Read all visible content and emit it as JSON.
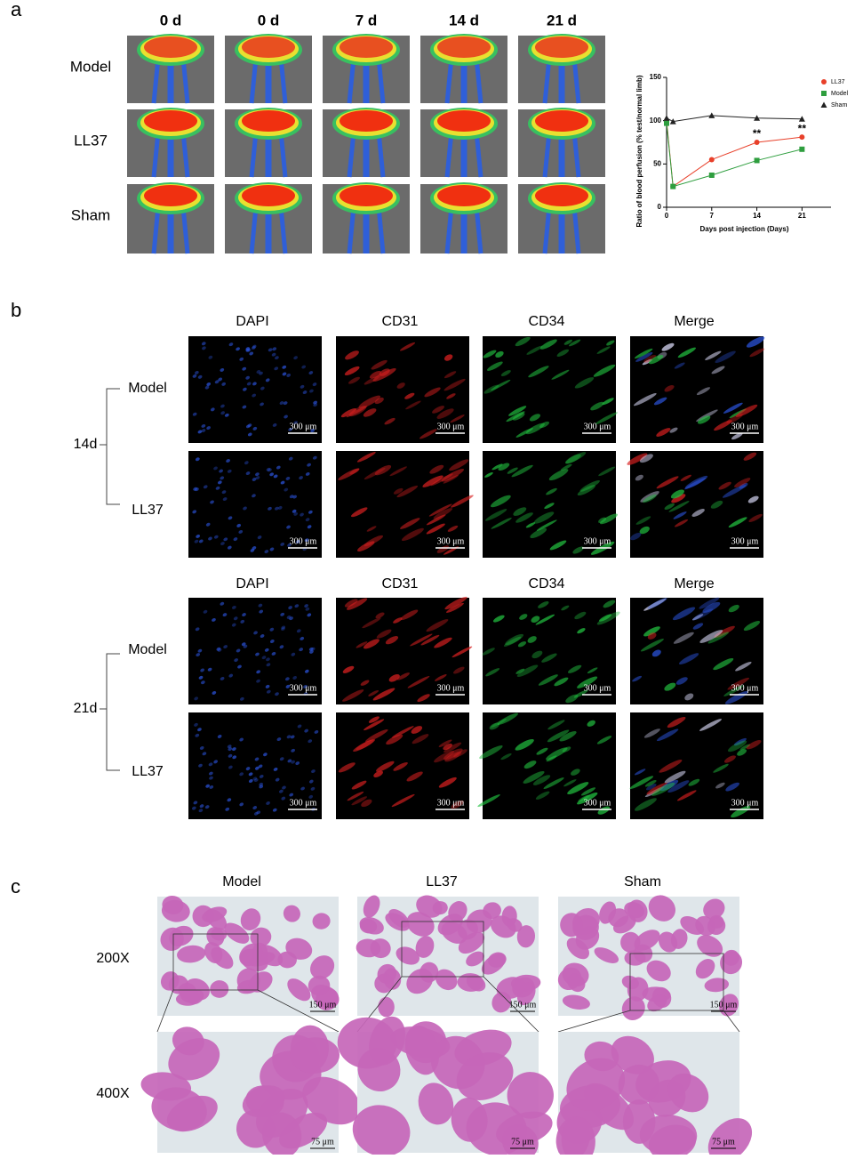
{
  "panel_labels": [
    "a",
    "b",
    "c"
  ],
  "panel_a": {
    "columns": [
      "0 d",
      "0 d",
      "7 d",
      "14 d",
      "21 d"
    ],
    "rows": [
      "Model",
      "LL37",
      "Sham"
    ]
  },
  "chart_data": {
    "type": "line",
    "y_label": "Ratio of blood perfusion (% test/normal limb)",
    "x_label": "Days post injection (Days)",
    "x": [
      0,
      1,
      7,
      14,
      21
    ],
    "series": [
      {
        "name": "LL37",
        "color": "#e8402a",
        "marker": "circle",
        "values": [
          100,
          24,
          55,
          75,
          81
        ]
      },
      {
        "name": "Model",
        "color": "#2e9e3e",
        "marker": "square",
        "values": [
          97,
          24,
          37,
          54,
          67
        ]
      },
      {
        "name": "Sham",
        "color": "#222222",
        "marker": "triangle",
        "values": [
          103,
          99,
          106,
          103,
          102
        ]
      }
    ],
    "annotations": [
      {
        "text": "**",
        "x": 14
      },
      {
        "text": "**",
        "x": 21
      }
    ],
    "xlim": [
      0,
      25.5
    ],
    "xticks": [
      0,
      7,
      14,
      21
    ],
    "ylim": [
      0,
      150
    ],
    "yticks": [
      0,
      50,
      100,
      150
    ],
    "legend": "upper right"
  },
  "panel_b": {
    "columns": [
      "DAPI",
      "CD31",
      "CD34",
      "Merge"
    ],
    "groups": [
      {
        "label": "14d",
        "rows": [
          "Model",
          "LL37"
        ]
      },
      {
        "label": "21d",
        "rows": [
          "Model",
          "LL37"
        ]
      }
    ],
    "scale_bar": "300 μm"
  },
  "panel_c": {
    "columns": [
      "Model",
      "LL37",
      "Sham"
    ],
    "rows": [
      "200X",
      "400X"
    ],
    "scale_bars": [
      "150 μm",
      "75 μm"
    ]
  }
}
